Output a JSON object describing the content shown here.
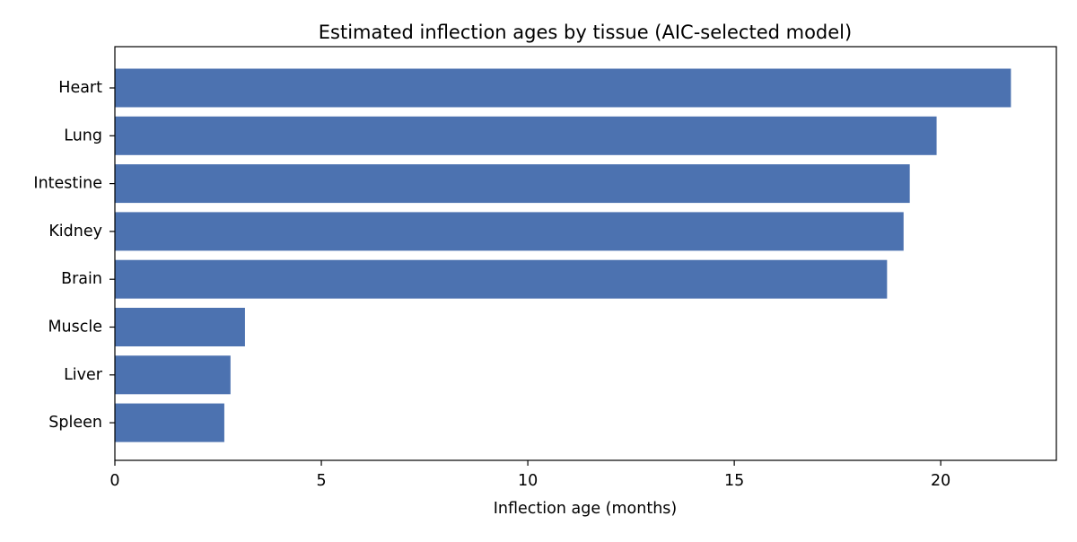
{
  "chart_data": {
    "type": "bar",
    "orientation": "horizontal",
    "title": "Estimated inflection ages by tissue (AIC-selected model)",
    "xlabel": "Inflection age (months)",
    "ylabel": "",
    "categories": [
      "Heart",
      "Lung",
      "Intestine",
      "Kidney",
      "Brain",
      "Muscle",
      "Liver",
      "Spleen"
    ],
    "values": [
      21.7,
      19.9,
      19.25,
      19.1,
      18.7,
      3.15,
      2.8,
      2.65
    ],
    "xlim": [
      0,
      22.8
    ],
    "xticks": [
      0,
      5,
      10,
      15,
      20
    ],
    "grid": false,
    "legend": "none",
    "bar_color": "#4c72b0"
  }
}
